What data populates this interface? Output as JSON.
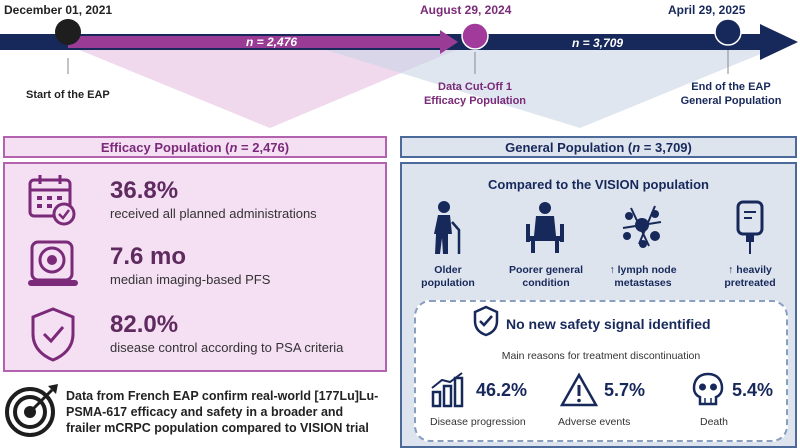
{
  "timeline": {
    "date_start": "December 01, 2021",
    "date_mid": "August 29, 2024",
    "date_end": "April 29, 2025",
    "n_first": "n = 2,476",
    "n_second": "n = 3,709",
    "label_start": "Start of the EAP",
    "label_mid_1": "Data Cut-Off 1",
    "label_mid_2": "Efficacy Population",
    "label_end_1": "End of the EAP",
    "label_end_2": "General Population"
  },
  "efficacy": {
    "header_prefix": "Efficacy Population (",
    "header_n": "n",
    "header_suffix": " = 2,476)",
    "items": [
      {
        "value": "36.8%",
        "text": "received all planned administrations",
        "icon": "calendar-check-icon"
      },
      {
        "value": "7.6 mo",
        "text": "median imaging-based PFS",
        "icon": "scanner-icon"
      },
      {
        "value": "82.0%",
        "text": "disease control according to PSA criteria",
        "icon": "shield-check-icon"
      }
    ]
  },
  "general": {
    "header_prefix": "General Population (",
    "header_n": "n",
    "header_suffix": " = 3,709)",
    "compare_title": "Compared to the VISION population",
    "features": [
      {
        "line1": "Older",
        "line2": "population",
        "icon": "elderly-person-icon"
      },
      {
        "line1": "Poorer general",
        "line2": "condition",
        "icon": "seated-person-icon"
      },
      {
        "line1": "↑ lymph node",
        "line2": "metastases",
        "icon": "lymph-node-icon"
      },
      {
        "line1": "↑ heavily",
        "line2": "pretreated",
        "icon": "iv-bag-icon"
      }
    ],
    "safety_title": "No new safety signal identified",
    "reasons_title": "Main reasons for treatment discontinuation",
    "reasons": [
      {
        "value": "46.2%",
        "label": "Disease progression",
        "icon": "bar-growth-icon"
      },
      {
        "value": "5.7%",
        "label": "Adverse events",
        "icon": "warning-icon"
      },
      {
        "value": "5.4%",
        "label": "Death",
        "icon": "skull-icon"
      }
    ]
  },
  "conclusion": {
    "line1": "Data from French EAP confirm real-world [177Lu]Lu-",
    "line2": "PSMA-617 efficacy and safety in a broader and",
    "line3": "frailer mCRPC population compared to VISION trial",
    "icon": "target-icon"
  },
  "colors": {
    "navy": "#17285a",
    "purple": "#7a2a78",
    "light_purple": "#f5dff3",
    "light_blue": "#dde4ee"
  }
}
